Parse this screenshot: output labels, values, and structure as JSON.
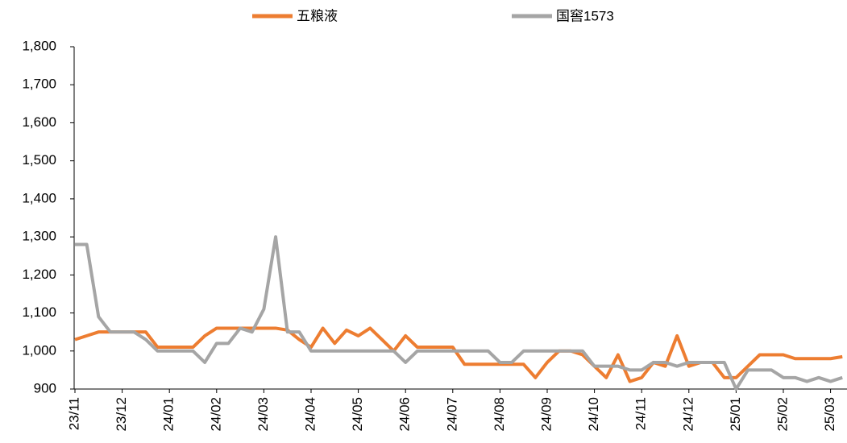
{
  "chart_data": {
    "type": "line",
    "categories": [
      "23/11",
      null,
      null,
      null,
      "23/12",
      null,
      null,
      null,
      "24/01",
      null,
      null,
      null,
      "24/02",
      null,
      null,
      null,
      "24/03",
      null,
      null,
      null,
      "24/04",
      null,
      null,
      null,
      "24/05",
      null,
      null,
      null,
      "24/06",
      null,
      null,
      null,
      "24/07",
      null,
      null,
      null,
      "24/08",
      null,
      null,
      null,
      "24/09",
      null,
      null,
      null,
      "24/10",
      null,
      null,
      null,
      "24/11",
      null,
      null,
      null,
      "24/12",
      null,
      null,
      null,
      "25/01",
      null,
      null,
      null,
      "25/02",
      null,
      null,
      null,
      "25/03",
      null
    ],
    "series": [
      {
        "name": "五粮液",
        "color": "#ed7d31",
        "values": [
          1030,
          1040,
          1050,
          1050,
          1050,
          1050,
          1050,
          1010,
          1010,
          1010,
          1010,
          1040,
          1060,
          1060,
          1060,
          1060,
          1060,
          1060,
          1055,
          1030,
          1010,
          1060,
          1020,
          1055,
          1040,
          1060,
          1030,
          1000,
          1040,
          1010,
          1010,
          1010,
          1010,
          965,
          965,
          965,
          965,
          965,
          965,
          930,
          970,
          1000,
          1000,
          990,
          960,
          930,
          990,
          920,
          930,
          970,
          960,
          1040,
          960,
          970,
          970,
          930,
          930,
          960,
          990,
          990,
          990,
          980,
          980,
          980,
          980,
          985
        ]
      },
      {
        "name": "国窖1573",
        "color": "#a5a5a5",
        "values": [
          1280,
          1280,
          1090,
          1050,
          1050,
          1050,
          1030,
          1000,
          1000,
          1000,
          1000,
          970,
          1020,
          1020,
          1060,
          1050,
          1110,
          1300,
          1050,
          1050,
          1000,
          1000,
          1000,
          1000,
          1000,
          1000,
          1000,
          1000,
          970,
          1000,
          1000,
          1000,
          1000,
          1000,
          1000,
          1000,
          970,
          970,
          1000,
          1000,
          1000,
          1000,
          1000,
          1000,
          960,
          960,
          960,
          950,
          950,
          970,
          970,
          960,
          970,
          970,
          970,
          970,
          900,
          950,
          950,
          950,
          930,
          930,
          920,
          930,
          920,
          930
        ]
      }
    ],
    "ylim": [
      900,
      1800
    ],
    "yticks": [
      {
        "value": 900,
        "label": "900"
      },
      {
        "value": 1000,
        "label": "1,000"
      },
      {
        "value": 1100,
        "label": "1,100"
      },
      {
        "value": 1200,
        "label": "1,200"
      },
      {
        "value": 1300,
        "label": "1,300"
      },
      {
        "value": 1400,
        "label": "1,400"
      },
      {
        "value": 1500,
        "label": "1,500"
      },
      {
        "value": 1600,
        "label": "1,600"
      },
      {
        "value": 1700,
        "label": "1,700"
      },
      {
        "value": 1800,
        "label": "1,800"
      }
    ],
    "legend": "top"
  }
}
